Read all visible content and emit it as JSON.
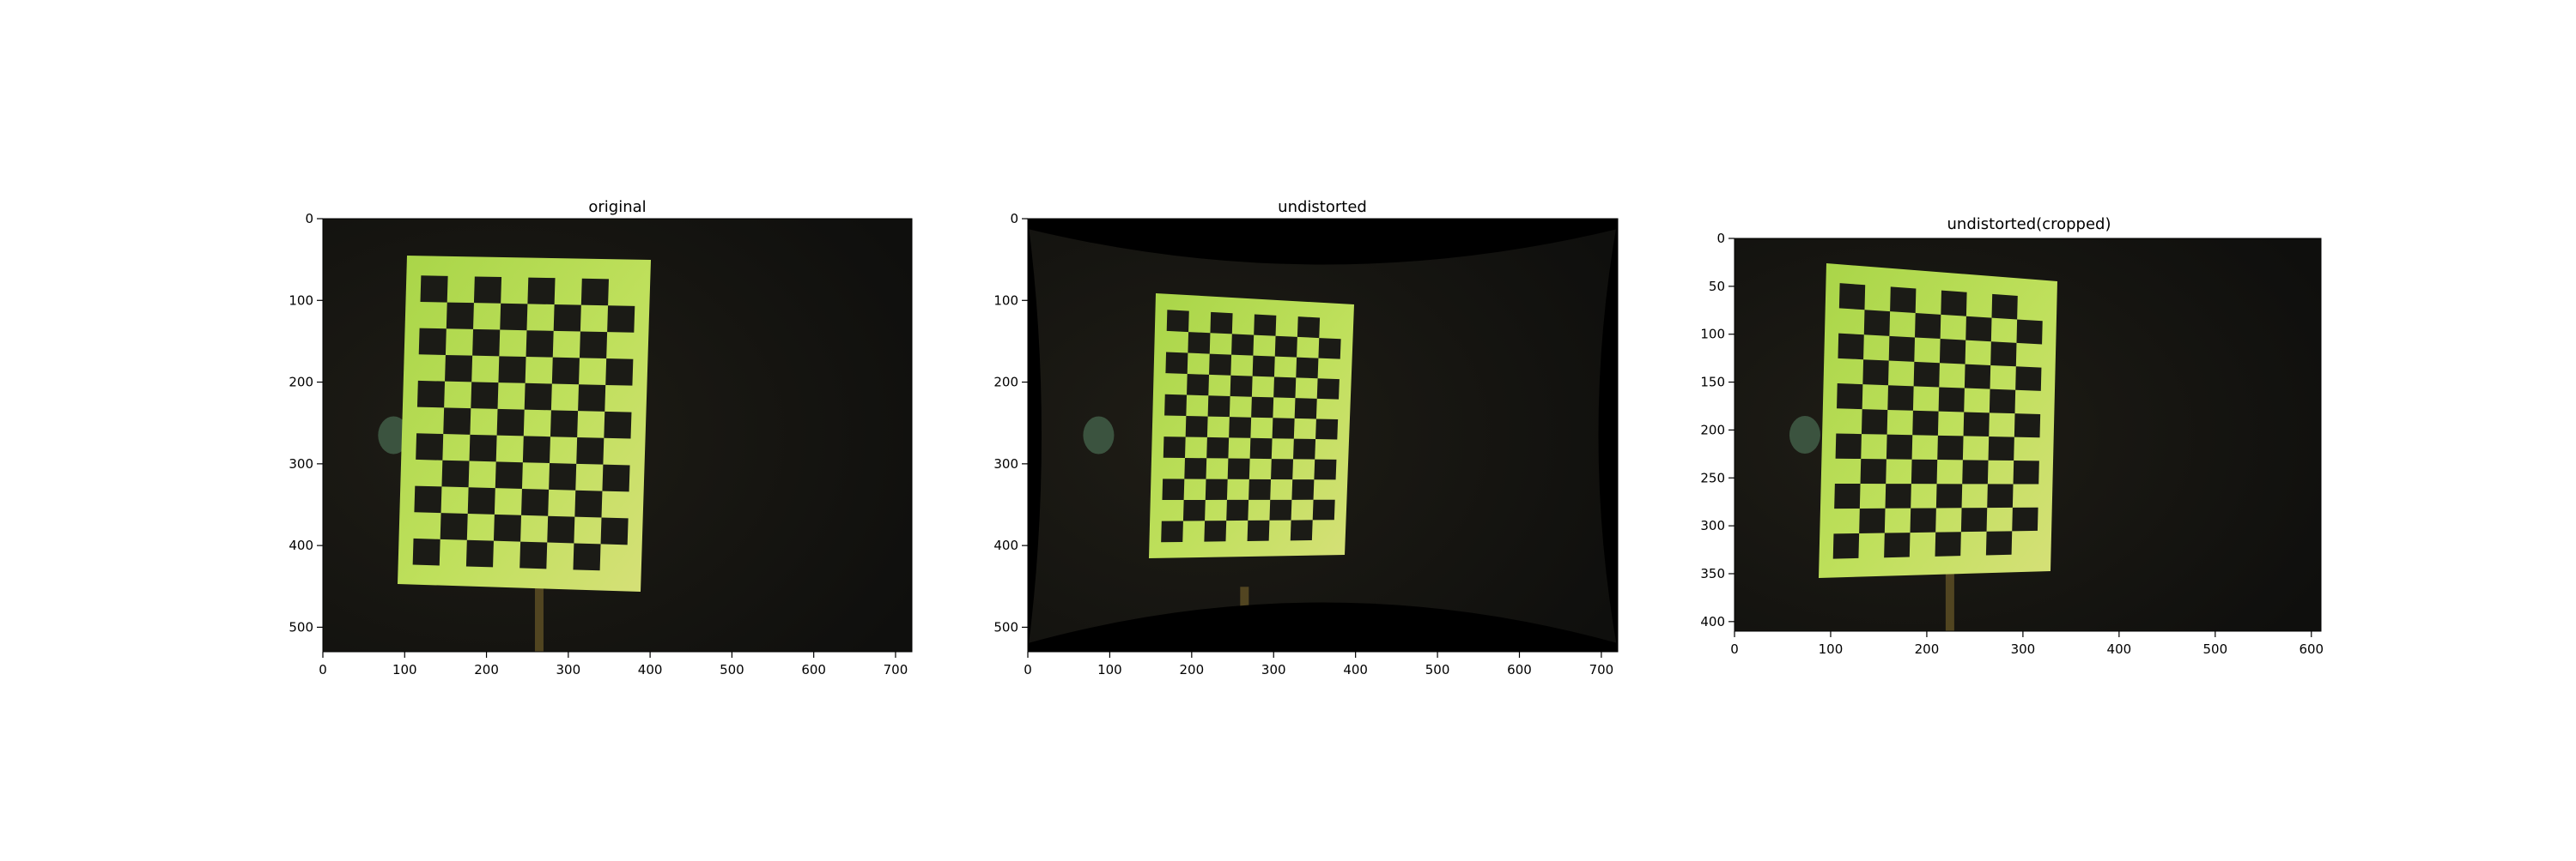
{
  "figure": {
    "panels": [
      {
        "title": "original",
        "x_ticks": [
          0,
          100,
          200,
          300,
          400,
          500,
          600,
          700
        ],
        "y_ticks": [
          0,
          100,
          200,
          300,
          400,
          500
        ],
        "x_range": [
          0,
          720
        ],
        "y_range": [
          0,
          530
        ]
      },
      {
        "title": "undistorted",
        "x_ticks": [
          0,
          100,
          200,
          300,
          400,
          500,
          600,
          700
        ],
        "y_ticks": [
          0,
          100,
          200,
          300,
          400,
          500
        ],
        "x_range": [
          0,
          720
        ],
        "y_range": [
          0,
          530
        ]
      },
      {
        "title": "undistorted(cropped)",
        "x_ticks": [
          0,
          100,
          200,
          300,
          400,
          500,
          600
        ],
        "y_ticks": [
          0,
          50,
          100,
          150,
          200,
          250,
          300,
          350,
          400
        ],
        "x_range": [
          0,
          610
        ],
        "y_range": [
          0,
          410
        ]
      }
    ]
  },
  "colors": {
    "background": "#141411",
    "board": "#b8dc58",
    "square": "#1b1b16",
    "black_border": "#000000"
  }
}
